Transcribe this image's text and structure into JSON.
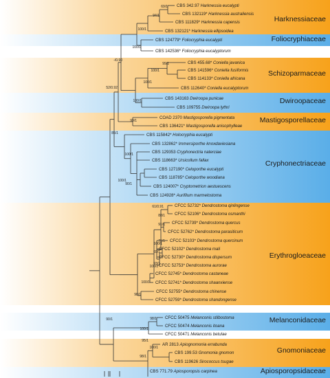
{
  "families": [
    {
      "name": "Harknessiaceae",
      "color": "orange"
    },
    {
      "name": "Foliocryphiaceae",
      "color": "blue"
    },
    {
      "name": "Schizoparmaceae",
      "color": "orange"
    },
    {
      "name": "Dwiroopaceae",
      "color": "blue"
    },
    {
      "name": "Mastigosporellaceae",
      "color": "orange"
    },
    {
      "name": "Cryphonectriaceae",
      "color": "blue"
    },
    {
      "name": "Erythrogloeaceae",
      "color": "orange"
    },
    {
      "name": "Melanconidaceae",
      "color": "blue"
    },
    {
      "name": "Gnomoniaceae",
      "color": "orange"
    },
    {
      "name": "Apiosporopsidaceae",
      "color": "blue"
    }
  ],
  "colors": {
    "orange": "#f7a21b",
    "blue": "#5aaee8",
    "line": "#333333"
  },
  "taxa": [
    {
      "code": "CBS 342.97",
      "species": "Harknessia eucalypti"
    },
    {
      "code": "CBS 132119*",
      "species": "Harknessia australiensis"
    },
    {
      "code": "CBS 111829*",
      "species": "Harknessia capensis"
    },
    {
      "code": "CBS 132121*",
      "species": "Harknessia ellipsoidea"
    },
    {
      "code": "CBS 124779*",
      "species": "Foliocryphia eucalypti"
    },
    {
      "code": "CBS 142536*",
      "species": "Foliocryphia eucalyptorum"
    },
    {
      "code": "CBS 455.68*",
      "species": "Coniella javanica"
    },
    {
      "code": "CBS 141596*",
      "species": "Coniella fusiformis"
    },
    {
      "code": "CBS 114133*",
      "species": "Coniella africana"
    },
    {
      "code": "CBS 112640*",
      "species": "Coniella eucalyptorum"
    },
    {
      "code": "CBS 143163",
      "species": "Dwiroopa punicae"
    },
    {
      "code": "CBS 109755",
      "species": "Dwiroopa lythri"
    },
    {
      "code": "COAD 2370",
      "species": "Mastigosporella pigmentata"
    },
    {
      "code": "CBS 136421*",
      "species": "Mastigosporella anisophylleae"
    },
    {
      "code": "CBS 115842*",
      "species": "Holocryphia eucalypti"
    },
    {
      "code": "CBS 132862*",
      "species": "Immersiporthe knoxdaviesiana"
    },
    {
      "code": "CBS 129353",
      "species": "Cryphonectria naterciae"
    },
    {
      "code": "CBS 118663*",
      "species": "Ursicollum fallax"
    },
    {
      "code": "CBS 127190*",
      "species": "Celoporthe eucalypti"
    },
    {
      "code": "CBS 118785*",
      "species": "Celoporthe woodiana"
    },
    {
      "code": "CBS 124007*",
      "species": "Cryptometrion aestuescens"
    },
    {
      "code": "CBS 124928*",
      "species": "Aurifilum marmelostoma"
    },
    {
      "code": "CFCC 52732*",
      "species": "Dendrostoma qinlingense"
    },
    {
      "code": "CFCC 52106*",
      "species": "Dendrostoma osmanthi"
    },
    {
      "code": "CFCC 52739*",
      "species": "Dendrostoma quercus"
    },
    {
      "code": "CFCC 52762*",
      "species": "Dendrostoma parasiticum"
    },
    {
      "code": "CFCC 52103*",
      "species": "Dendrostoma quercinum"
    },
    {
      "code": "CFCC 52102*",
      "species": "Dendrostoma mali"
    },
    {
      "code": "CFCC 52730*",
      "species": "Dendrostoma dispersum"
    },
    {
      "code": "CFCC 52753*",
      "species": "Dendrostoma aurorae"
    },
    {
      "code": "CFCC 52745*",
      "species": "Dendrostoma castaneae"
    },
    {
      "code": "CFCC 52741*",
      "species": "Dendrostoma shaanxiense"
    },
    {
      "code": "CFCC 52755*",
      "species": "Dendrostoma chinense"
    },
    {
      "code": "CFCC 52759*",
      "species": "Dendrostoma shandongense"
    },
    {
      "code": "CFCC 50475",
      "species": "Melanconis stilbostoma"
    },
    {
      "code": "CFCC 50474",
      "species": "Melanconis itoana"
    },
    {
      "code": "CFCC 50471",
      "species": "Melanconis betulae"
    },
    {
      "code": "AR 2813",
      "species": "Apiognomonia errabunda"
    },
    {
      "code": "CBS 199.53",
      "species": "Gnomonia gnomon"
    },
    {
      "code": "CBS 119626",
      "species": "Sirococcus tsugae"
    },
    {
      "code": "CBS 771.79",
      "species": "Apiosporopsis carpinea"
    }
  ],
  "supports": [
    "69/1",
    "94/1",
    "100/1",
    "-/0.90",
    "100/1",
    "99/1",
    "100/1",
    "100/1",
    "52/0.92",
    "100/1",
    "99/1",
    "85/1",
    "100/1",
    "90/1",
    "100/1",
    "61/0.91",
    "88/1",
    "91/1",
    "71/1",
    "100/1",
    "69/1",
    "93/1",
    "100/1",
    "100/1",
    "98/1",
    "98/1",
    "100/1",
    "90/1",
    "95/1",
    "100/1",
    "98/1"
  ]
}
